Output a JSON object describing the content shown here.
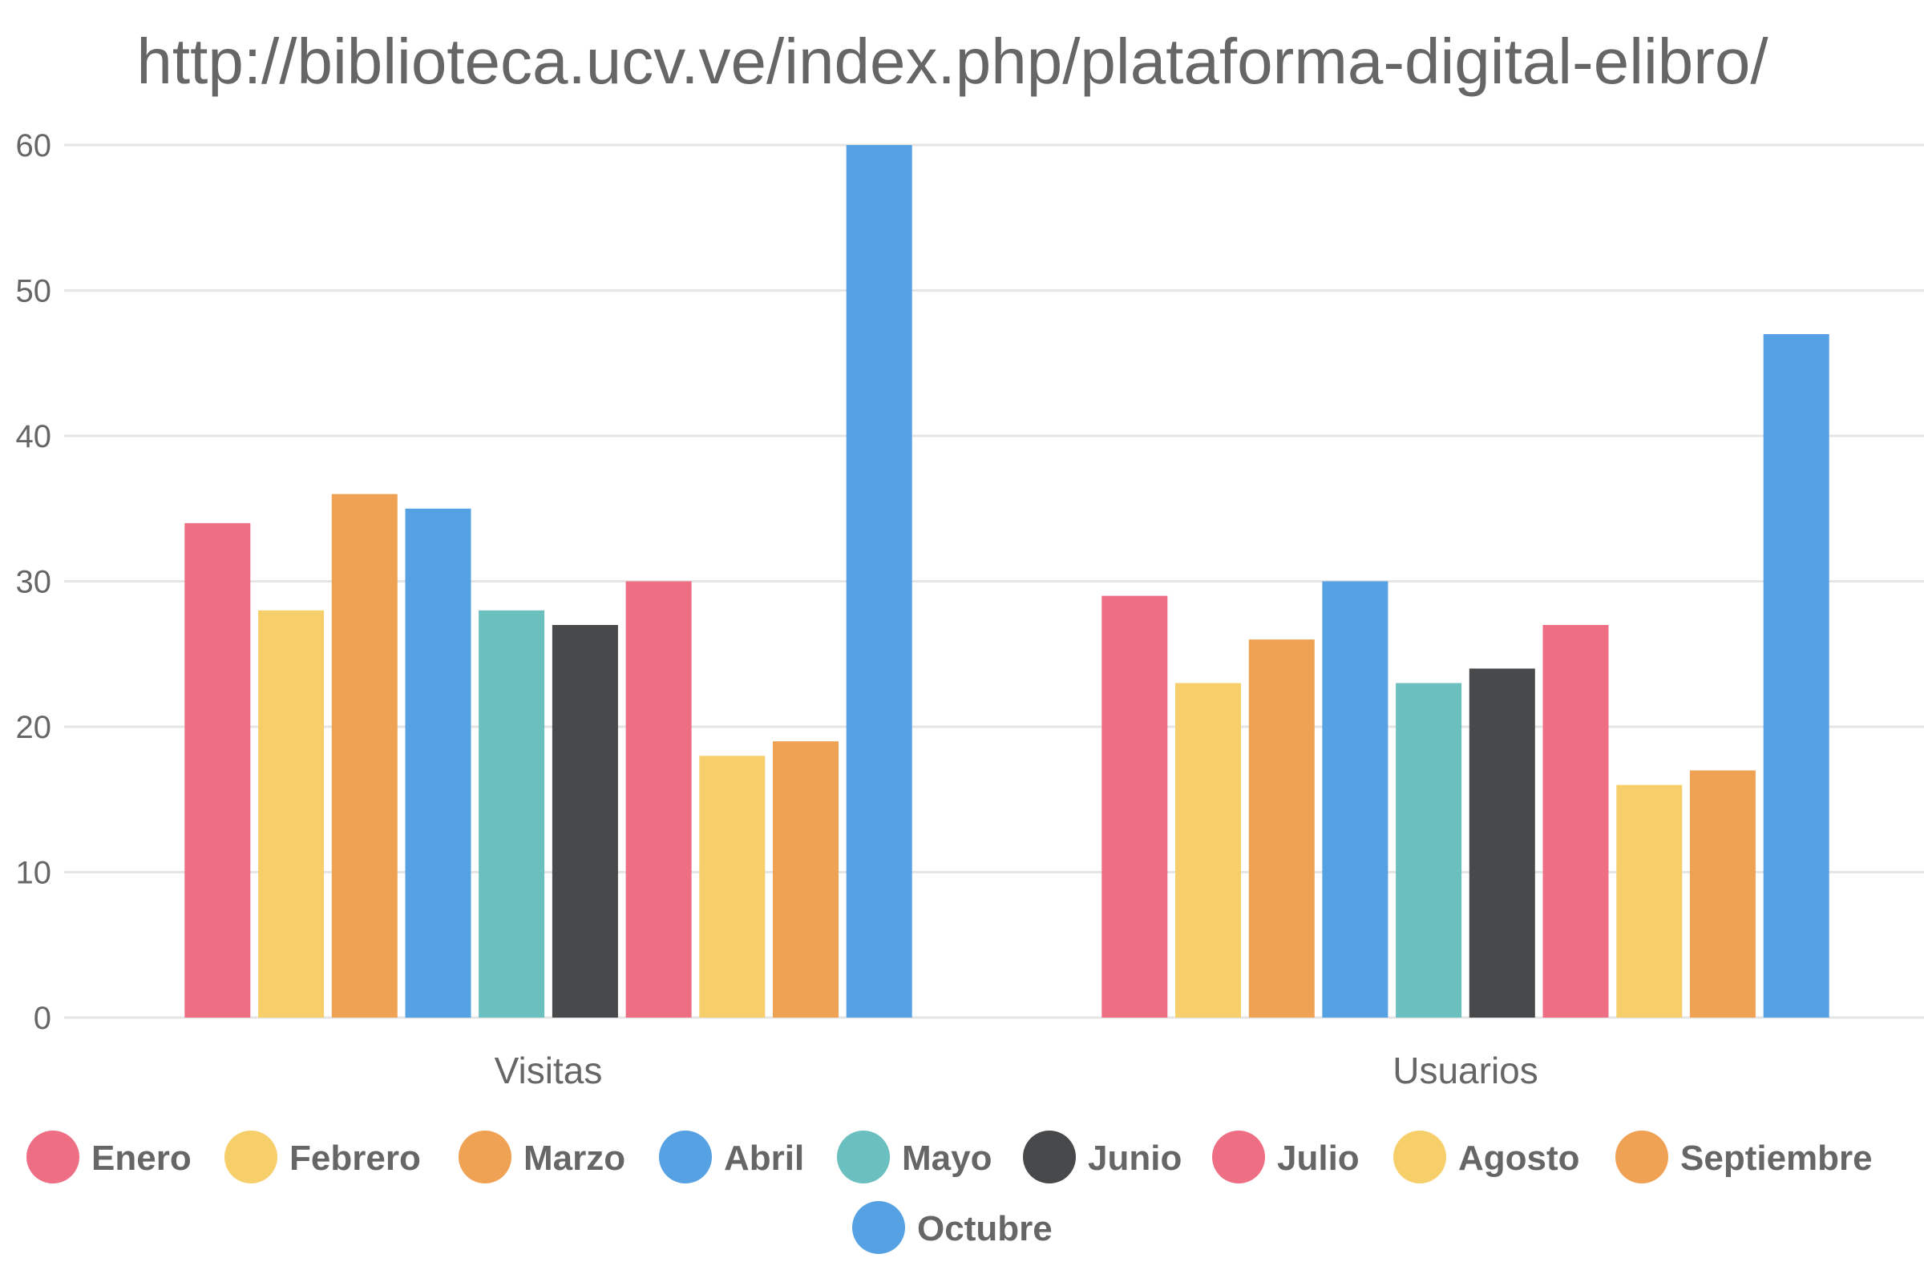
{
  "chart_data": {
    "type": "bar",
    "title": "http://biblioteca.ucv.ve/index.php/plataforma-digital-elibro/",
    "categories": [
      "Visitas",
      "Usuarios"
    ],
    "series": [
      {
        "name": "Enero",
        "color": "#ee6e84",
        "values": [
          34,
          29
        ]
      },
      {
        "name": "Febrero",
        "color": "#f6cf6b",
        "values": [
          28,
          23
        ]
      },
      {
        "name": "Marzo",
        "color": "#f0a254",
        "values": [
          36,
          26
        ]
      },
      {
        "name": "Abril",
        "color": "#56a1e4",
        "values": [
          35,
          30
        ]
      },
      {
        "name": "Mayo",
        "color": "#6cbfbf",
        "values": [
          28,
          23
        ]
      },
      {
        "name": "Junio",
        "color": "#48494b",
        "values": [
          27,
          24
        ]
      },
      {
        "name": "Julio",
        "color": "#ee6e84",
        "values": [
          30,
          27
        ]
      },
      {
        "name": "Agosto",
        "color": "#f6cf6b",
        "values": [
          18,
          16
        ]
      },
      {
        "name": "Septiembre",
        "color": "#f0a254",
        "values": [
          19,
          17
        ]
      },
      {
        "name": "Octubre",
        "color": "#56a1e4",
        "values": [
          60,
          47
        ]
      }
    ],
    "ylim": [
      0,
      60
    ],
    "yticks": [
      0,
      10,
      20,
      30,
      40,
      50,
      60
    ],
    "grid": true,
    "legend": "bottom"
  }
}
